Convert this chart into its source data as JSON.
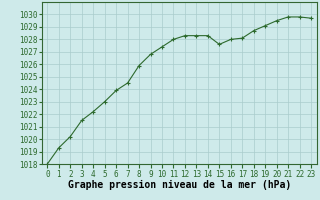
{
  "x": [
    0,
    1,
    2,
    3,
    4,
    5,
    6,
    7,
    8,
    9,
    10,
    11,
    12,
    13,
    14,
    15,
    16,
    17,
    18,
    19,
    20,
    21,
    22,
    23
  ],
  "y": [
    1018.0,
    1019.3,
    1020.2,
    1021.5,
    1022.2,
    1023.0,
    1023.9,
    1024.5,
    1025.9,
    1026.8,
    1027.4,
    1028.0,
    1028.3,
    1028.3,
    1028.3,
    1027.6,
    1028.0,
    1028.1,
    1028.7,
    1029.1,
    1029.5,
    1029.8,
    1029.8,
    1029.7
  ],
  "line_color": "#2d6a2d",
  "marker": "+",
  "marker_size": 3,
  "bg_color": "#ceeaea",
  "grid_color": "#aacccc",
  "xlabel": "Graphe pression niveau de la mer (hPa)",
  "xlabel_fontsize": 7,
  "ylim": [
    1018,
    1031
  ],
  "xlim": [
    -0.5,
    23.5
  ],
  "yticks": [
    1018,
    1019,
    1020,
    1021,
    1022,
    1023,
    1024,
    1025,
    1026,
    1027,
    1028,
    1029,
    1030
  ],
  "xticks": [
    0,
    1,
    2,
    3,
    4,
    5,
    6,
    7,
    8,
    9,
    10,
    11,
    12,
    13,
    14,
    15,
    16,
    17,
    18,
    19,
    20,
    21,
    22,
    23
  ],
  "tick_fontsize": 5.5,
  "line_width": 0.8,
  "spine_color": "#336633"
}
